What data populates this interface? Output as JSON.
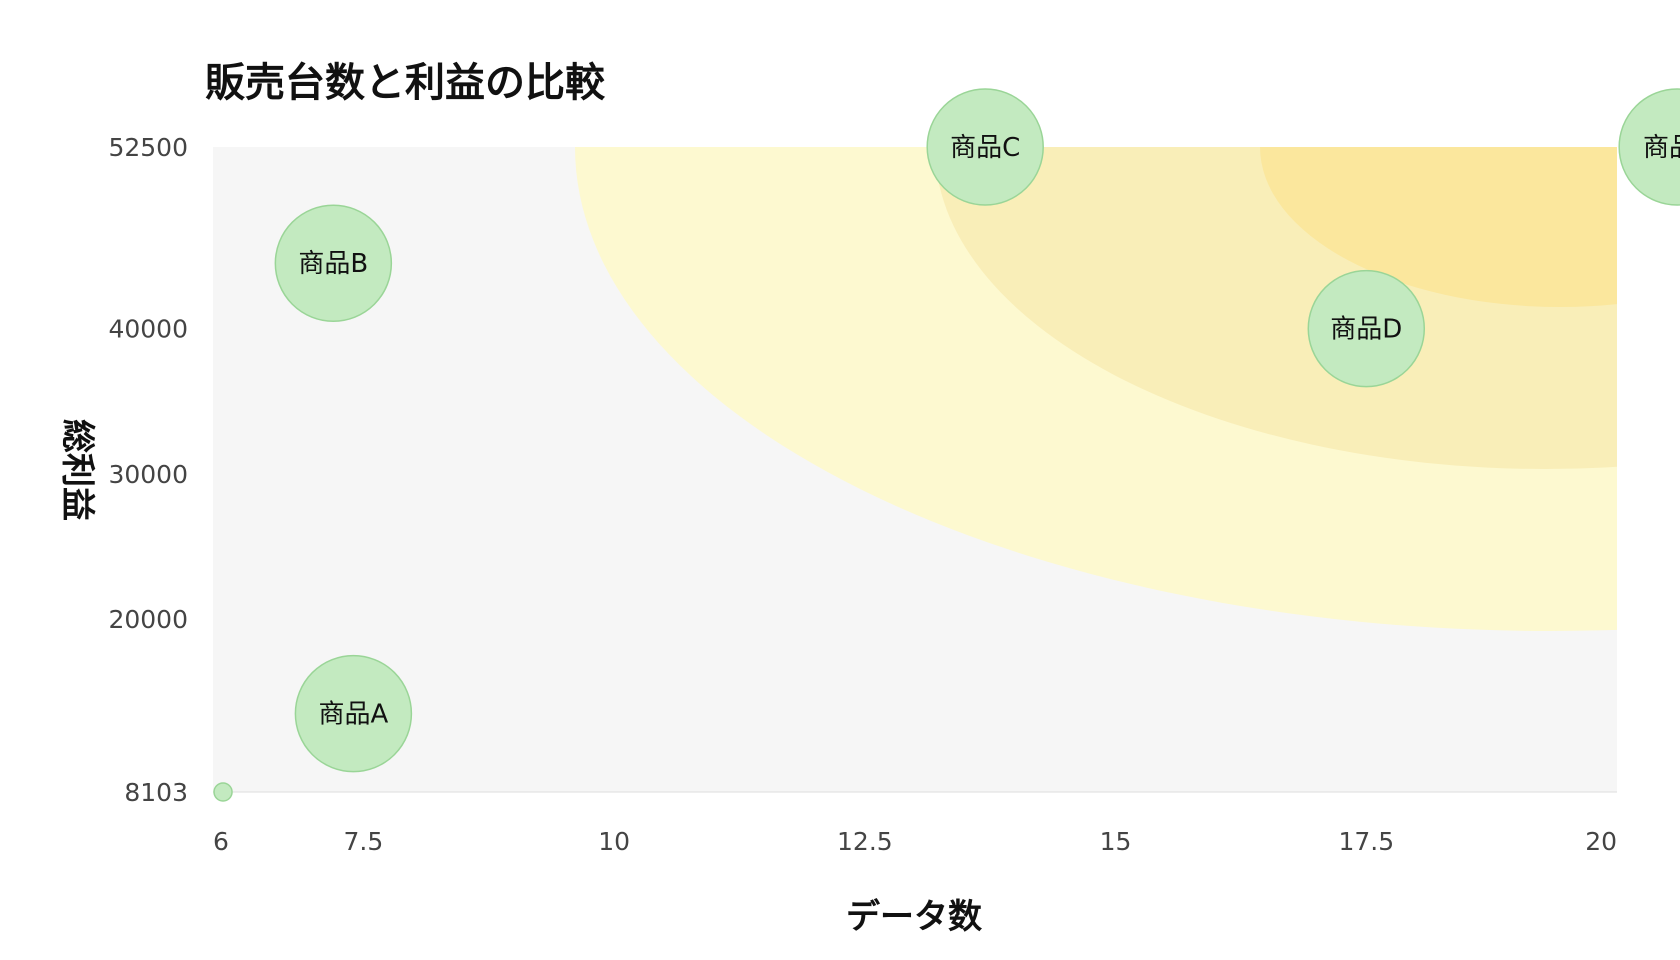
{
  "chart_data": {
    "type": "scatter",
    "title": "販売台数と利益の比較",
    "xlabel": "データ数",
    "ylabel": "総利益",
    "xlim": [
      6,
      20
    ],
    "ylim": [
      8103,
      52500
    ],
    "x_ticks": [
      "6",
      "7.5",
      "10",
      "12.5",
      "15",
      "17.5",
      "20"
    ],
    "y_ticks": [
      "8103",
      "20000",
      "30000",
      "40000",
      "52500"
    ],
    "series": [
      {
        "points": [
          {
            "label": "商品A",
            "x": 7.4,
            "y": 13500
          },
          {
            "label": "商品B",
            "x": 7.2,
            "y": 44500
          },
          {
            "label": "商品C",
            "x": 13.7,
            "y": 52500
          },
          {
            "label": "商品D",
            "x": 17.5,
            "y": 40000
          },
          {
            "label": "商品E",
            "x": 20.6,
            "y": 52500
          },
          {
            "label": "",
            "x": 6.1,
            "y": 8103
          }
        ]
      }
    ],
    "background_zones": [
      {
        "color": "#fdf9d0"
      },
      {
        "color": "#f9eeb8"
      },
      {
        "color": "#fbe79d"
      }
    ],
    "plot_background": "#f6f6f6",
    "bubble_fill": "#c3eac0",
    "bubble_stroke": "#9ad597"
  }
}
